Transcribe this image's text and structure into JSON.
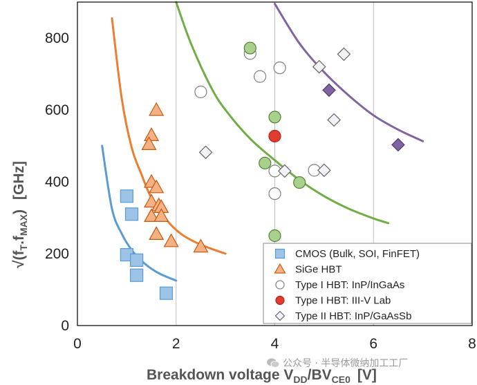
{
  "chart_data": {
    "type": "scatter",
    "title": "",
    "xlabel": "Breakdown voltage V",
    "xlabel_sub1": "DD",
    "xlabel_mid": "/BV",
    "xlabel_sub2": "CE0",
    "xlabel_unit": "[V]",
    "ylabel": "√(f",
    "ylabel_sub1": "T",
    "ylabel_mid": ".f",
    "ylabel_sub2": "MAX",
    "ylabel_tail": ")",
    "ylabel_unit": "[GHz]",
    "xlim": [
      0,
      8
    ],
    "ylim": [
      0,
      900
    ],
    "xticks": [
      "0",
      "2",
      "4",
      "6",
      "8"
    ],
    "yticks": [
      "0",
      "200",
      "400",
      "600",
      "800"
    ],
    "grid": "vertical",
    "legend_position": "lower-right",
    "series": [
      {
        "name": "CMOS (Bulk, SOI, FinFET)",
        "marker": "square",
        "color": "#9dc3e6",
        "edge": "#5b9bd5",
        "x": [
          1.0,
          1.1,
          1.0,
          1.2,
          1.2,
          1.8
        ],
        "y": [
          360,
          310,
          197,
          182,
          140,
          90
        ]
      },
      {
        "name": "SiGe HBT",
        "marker": "triangle",
        "color": "#f4b183",
        "edge": "#c55a11",
        "x": [
          1.6,
          1.5,
          1.45,
          1.5,
          1.6,
          1.5,
          1.65,
          1.7,
          1.5,
          1.7,
          1.6,
          1.9,
          2.5
        ],
        "y": [
          600,
          530,
          505,
          400,
          385,
          345,
          335,
          330,
          305,
          305,
          255,
          235,
          220
        ]
      },
      {
        "name": "Type I HBT: InP/InGaAs",
        "marker": "circle-open",
        "color": "#ffffff",
        "edge": "#7f7f7f",
        "x": [
          3.5,
          3.7,
          4.1,
          2.5,
          4.0,
          4.8,
          4.0
        ],
        "y": [
          757,
          693,
          717,
          650,
          430,
          432,
          367
        ]
      },
      {
        "name": "Type I HBT: III-V Lab",
        "marker": "circle",
        "color": "#e03c2f",
        "edge": "#b02418",
        "x": [
          4.0
        ],
        "y": [
          527
        ]
      },
      {
        "name": "Type II HBT: InP/GaAsSb",
        "marker": "diamond-open",
        "color": "#f2f2f8",
        "edge": "#666666",
        "x": [
          5.4,
          4.9,
          5.2,
          2.6,
          4.2,
          5.0
        ],
        "y": [
          755,
          720,
          572,
          482,
          430,
          432
        ]
      },
      {
        "name": "",
        "marker": "circle",
        "color": "#a9d18e",
        "edge": "#548235",
        "x": [
          3.5,
          4.0,
          3.8,
          4.5,
          4.0
        ],
        "y": [
          772,
          580,
          452,
          398,
          250
        ]
      },
      {
        "name": "",
        "marker": "diamond",
        "color": "#8064a2",
        "edge": "#4b3a6e",
        "x": [
          5.1,
          6.5
        ],
        "y": [
          655,
          503
        ]
      }
    ],
    "curves": [
      {
        "color": "#5b9bd5",
        "x": [
          0.5,
          0.7,
          0.9,
          1.1,
          1.3,
          1.5,
          1.7,
          2.0
        ],
        "y": [
          500,
          325,
          255,
          210,
          180,
          158,
          142,
          125
        ]
      },
      {
        "color": "#ed7d31",
        "x": [
          0.7,
          0.9,
          1.1,
          1.3,
          1.5,
          1.8,
          2.1,
          2.5,
          3.0
        ],
        "y": [
          855,
          630,
          495,
          420,
          355,
          295,
          255,
          225,
          200
        ]
      },
      {
        "color": "#70ad47",
        "x": [
          2.0,
          2.3,
          2.7,
          3.0,
          3.5,
          4.0,
          4.5,
          5.0,
          5.5,
          6.0,
          6.3
        ],
        "y": [
          900,
          785,
          665,
          600,
          520,
          460,
          405,
          360,
          325,
          298,
          285
        ]
      },
      {
        "color": "#8064a2",
        "x": [
          4.0,
          4.5,
          5.0,
          5.5,
          6.0,
          6.5,
          7.0
        ],
        "y": [
          895,
          785,
          705,
          640,
          585,
          545,
          513
        ]
      }
    ]
  },
  "watermark": "公众号 · 半导体微纳加工工厂",
  "watermark_icon": "wechat-icon"
}
